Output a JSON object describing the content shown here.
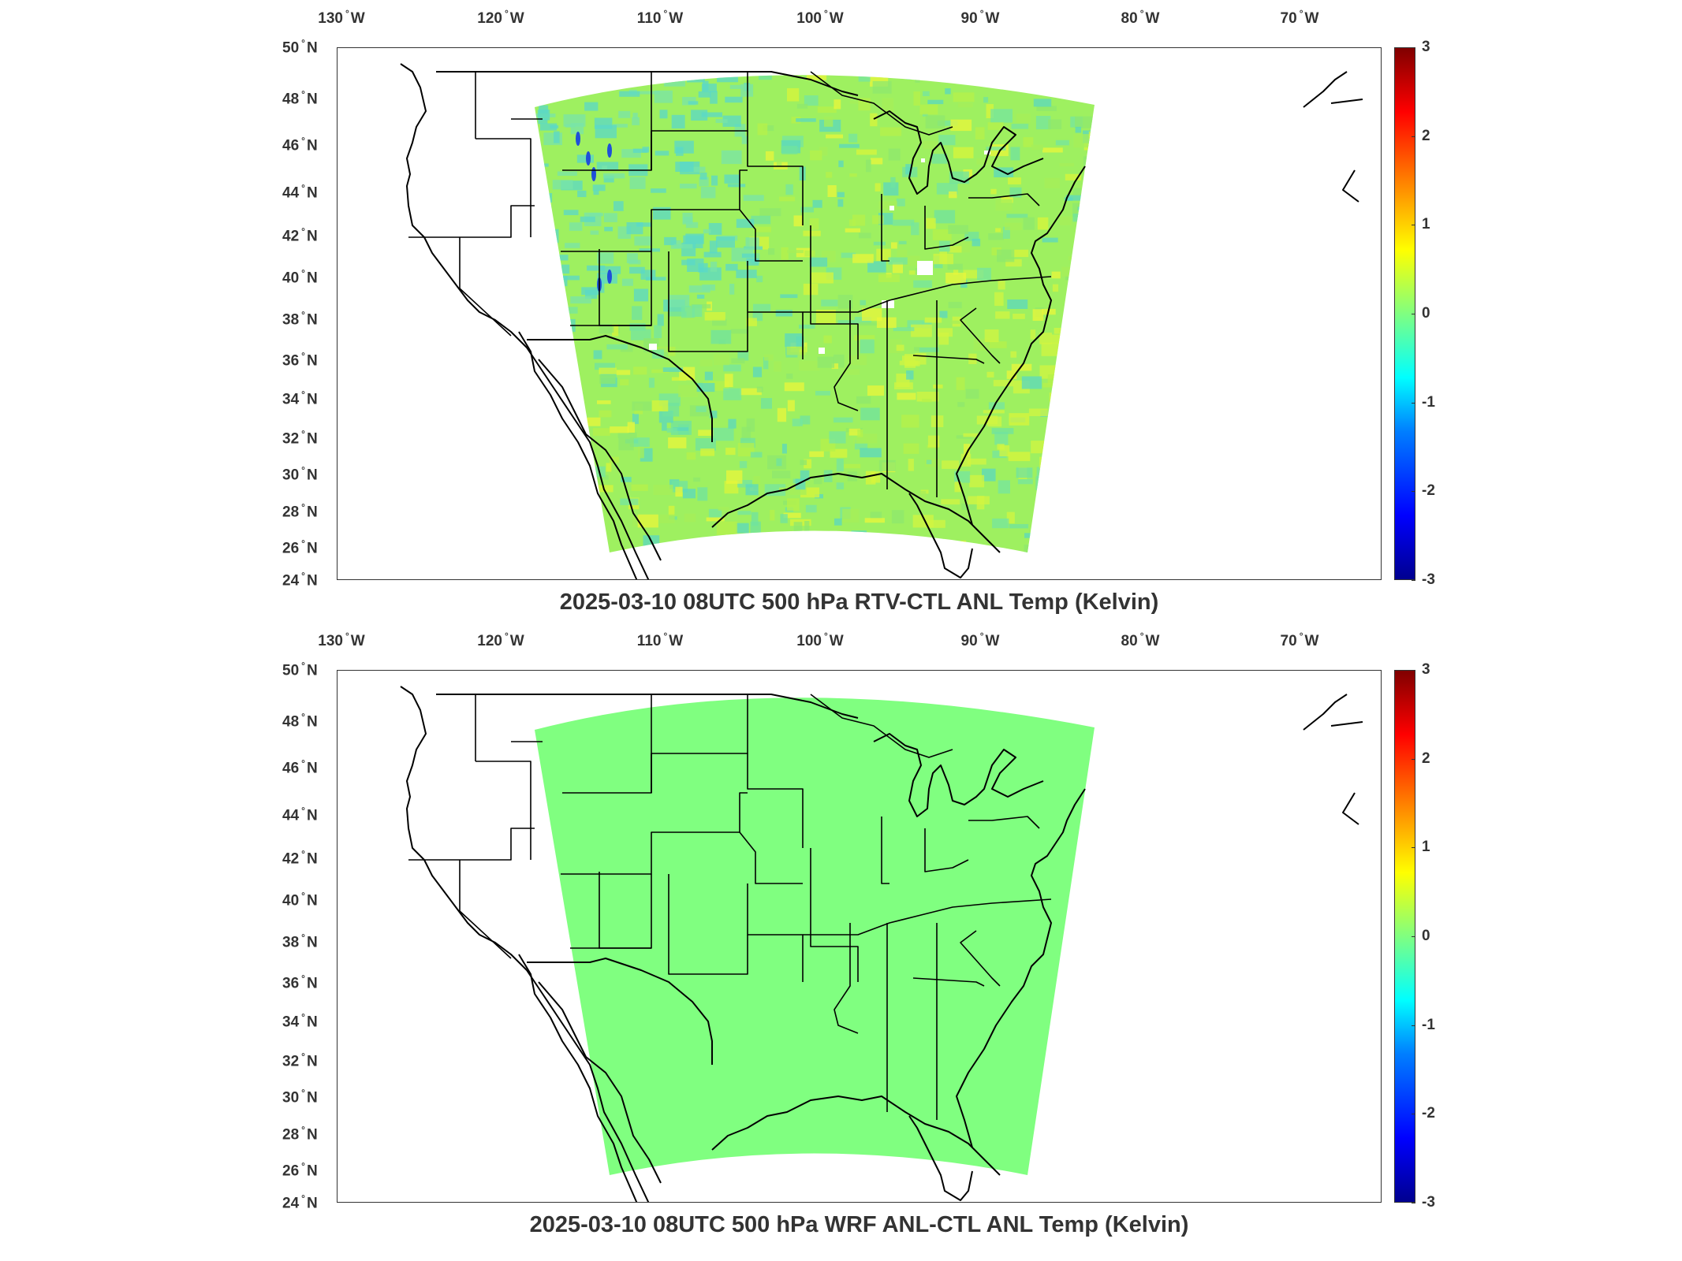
{
  "panels": [
    {
      "title": "2025-03-10 08UTC 500 hPa RTV-CTL ANL Temp (Kelvin)",
      "field_style": "noisy",
      "field_mean_color": "#9ef060"
    },
    {
      "title": "2025-03-10 08UTC 500 hPa WRF ANL-CTL ANL Temp (Kelvin)",
      "field_style": "uniform",
      "field_mean_color": "#80ff80"
    }
  ],
  "lon_ticks": [
    {
      "deg": "130",
      "hemi": "W"
    },
    {
      "deg": "120",
      "hemi": "W"
    },
    {
      "deg": "110",
      "hemi": "W"
    },
    {
      "deg": "100",
      "hemi": "W"
    },
    {
      "deg": "90",
      "hemi": "W"
    },
    {
      "deg": "80",
      "hemi": "W"
    },
    {
      "deg": "70",
      "hemi": "W"
    }
  ],
  "lat_ticks": [
    {
      "deg": "50",
      "hemi": "N"
    },
    {
      "deg": "48",
      "hemi": "N"
    },
    {
      "deg": "46",
      "hemi": "N"
    },
    {
      "deg": "44",
      "hemi": "N"
    },
    {
      "deg": "42",
      "hemi": "N"
    },
    {
      "deg": "40",
      "hemi": "N"
    },
    {
      "deg": "38",
      "hemi": "N"
    },
    {
      "deg": "36",
      "hemi": "N"
    },
    {
      "deg": "34",
      "hemi": "N"
    },
    {
      "deg": "32",
      "hemi": "N"
    },
    {
      "deg": "30",
      "hemi": "N"
    },
    {
      "deg": "28",
      "hemi": "N"
    },
    {
      "deg": "26",
      "hemi": "N"
    },
    {
      "deg": "24",
      "hemi": "N"
    }
  ],
  "colorbar": {
    "ticks": [
      "3",
      "2",
      "1",
      "0",
      "-1",
      "-2",
      "-3"
    ],
    "min": -3,
    "max": 3,
    "colormap": "jet"
  }
}
